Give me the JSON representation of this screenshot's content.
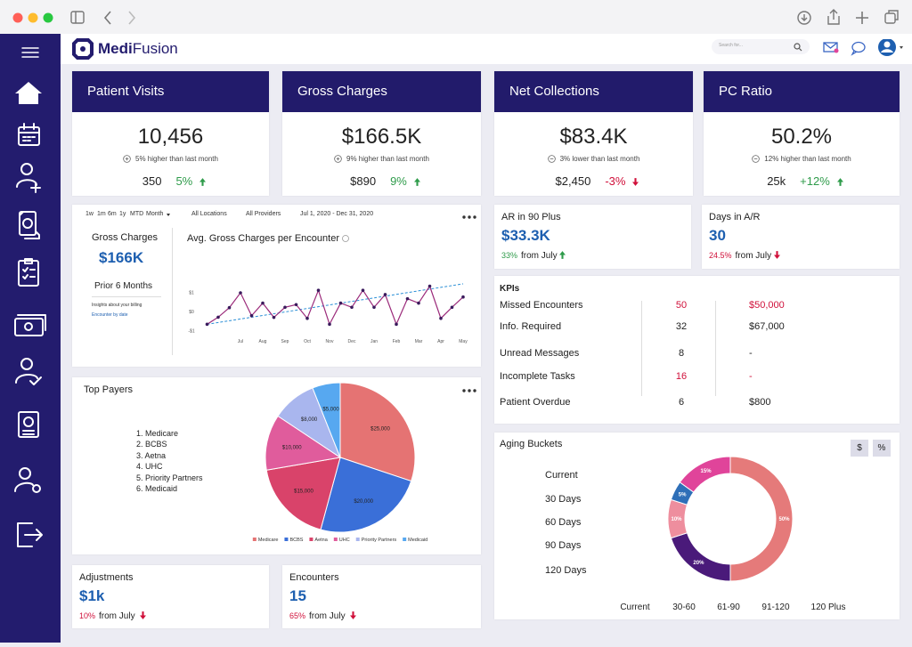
{
  "header": {
    "brand_bold": "Medi",
    "brand_light": "Fusion",
    "search_placeholder": "Search for..."
  },
  "kpi_cards": [
    {
      "title": "Patient Visits",
      "value": "10,456",
      "change_text": "5% higher than last month",
      "count": "350",
      "percent": "5%"
    },
    {
      "title": "Gross Charges",
      "value": "$166.5K",
      "change_text": "9% higher than last month",
      "count": "$890",
      "percent": "9%"
    },
    {
      "title": "Net Collections",
      "value": "$83.4K",
      "change_text": "3% lower than last month",
      "count": "$2,450",
      "percent": "-3%"
    },
    {
      "title": "PC Ratio",
      "value": "50.2%",
      "change_text": "12% higher than last month",
      "count": "25k",
      "percent": "+12%"
    }
  ],
  "filters": {
    "ranges": [
      "1w",
      "1m",
      "6m",
      "1y",
      "MTD",
      "Month"
    ],
    "location": "All Locations",
    "provider": "All Providers",
    "date_range": "Jul 1, 2020 - Dec 31, 2020"
  },
  "gross_charges": {
    "label": "Gross Charges",
    "value": "$166K",
    "period": "Prior 6 Months",
    "insight": "Insights about your billing",
    "link": "Encounter by date"
  },
  "line_chart": {
    "type": "line",
    "title": "Avg. Gross Charges per Encounter",
    "x": [
      -1.5,
      -1,
      -0.5,
      0,
      0.5,
      1,
      1.5,
      2,
      2.5,
      3,
      3.5,
      4,
      4.5,
      5,
      5.5,
      6,
      6.5,
      7,
      7.5,
      8,
      8.5,
      9,
      9.5,
      10
    ],
    "xlim": [
      -1.8,
      10.2
    ],
    "xticks": [
      {
        "value": 0,
        "label": "Jul"
      },
      {
        "value": 1,
        "label": "Aug"
      },
      {
        "value": 2,
        "label": "Sep"
      },
      {
        "value": 3,
        "label": "Oct"
      },
      {
        "value": 4,
        "label": "Nov"
      },
      {
        "value": 5,
        "label": "Dec"
      },
      {
        "value": 6,
        "label": "Jan"
      },
      {
        "value": 7,
        "label": "Feb"
      },
      {
        "value": 8,
        "label": "Mar"
      },
      {
        "value": 9,
        "label": "Apr"
      },
      {
        "value": 10,
        "label": "May"
      }
    ],
    "ylim": [
      -1.4,
      1.4
    ],
    "yticks": [
      {
        "value": 1,
        "label": "$1"
      },
      {
        "value": 0,
        "label": "$0"
      },
      {
        "value": -1,
        "label": "-$1"
      }
    ],
    "series": [
      {
        "color": "#9b2a7a",
        "marker_color": "#3a1a5c",
        "values": [
          -0.67,
          -0.3,
          0.2,
          0.98,
          -0.22,
          0.44,
          -0.31,
          0.22,
          0.36,
          -0.36,
          1.11,
          -0.67,
          0.44,
          0.22,
          1.11,
          0.22,
          0.89,
          -0.67,
          0.67,
          0.44,
          1.33,
          -0.36,
          0.22,
          0.76
        ]
      }
    ],
    "trend": {
      "color": "#2b8fd6",
      "x": [
        -1.5,
        10
      ],
      "values": [
        -0.67,
        1.45
      ]
    }
  },
  "ar_card": {
    "title": "AR in 90 Plus",
    "value": "$33.3K",
    "percent": "33%",
    "comparison": "from July"
  },
  "days_card": {
    "title": "Days in A/R",
    "value": "30",
    "percent": "24.5%",
    "comparison": "from July"
  },
  "kpis": {
    "title": "KPIs",
    "rows": [
      [
        "Missed Encounters",
        "50",
        "$50,000"
      ],
      [
        "Info. Required",
        "32",
        "$67,000"
      ],
      [
        "Unread Messages",
        "8",
        "-"
      ],
      [
        "Incomplete Tasks",
        "16",
        "-"
      ],
      [
        "Patient Overdue",
        "6",
        "$800"
      ]
    ]
  },
  "payers": {
    "title": "Top Payers",
    "list": [
      "1. Medicare",
      "2. BCBS",
      "3. Aetna",
      "4. UHC",
      "5. Priority Partners",
      "6. Medicaid"
    ],
    "chart": {
      "type": "pie",
      "categories": [
        "Medicare",
        "BCBS",
        "Aetna",
        "UHC",
        "Priority Partners",
        "Medicaid"
      ],
      "values": [
        25000,
        20000,
        15000,
        10000,
        8000,
        5000
      ],
      "value_labels": [
        "$25,000",
        "$20,000",
        "$15,000",
        "$10,000",
        "$8,000",
        "$5,000"
      ],
      "colors": [
        "#e57373",
        "#3a6fd8",
        "#d9436a",
        "#e05c9c",
        "#a9b6ee",
        "#57a8f0"
      ]
    }
  },
  "aging": {
    "title": "Aging Buckets",
    "toggles": [
      "$",
      "%"
    ],
    "list": [
      "Current",
      "30 Days",
      "60 Days",
      "90 Days",
      "120 Days"
    ],
    "chart": {
      "type": "donut",
      "categories": [
        "Current",
        "30-60",
        "61-90",
        "91-120",
        "120 Plus"
      ],
      "values": [
        50,
        20,
        10,
        5,
        15
      ],
      "value_labels": [
        "50%",
        "20%",
        "10%",
        "5%",
        "15%"
      ],
      "colors": [
        "#e57a7a",
        "#4a1a7a",
        "#ee8e9e",
        "#2e6fb8",
        "#e0449a"
      ]
    }
  },
  "adjustments_card": {
    "title": "Adjustments",
    "value": "$1k",
    "percent": "10%",
    "comparison": "from July"
  },
  "encounters_card": {
    "title": "Encounters",
    "value": "15",
    "percent": "65%",
    "comparison": "from July"
  }
}
